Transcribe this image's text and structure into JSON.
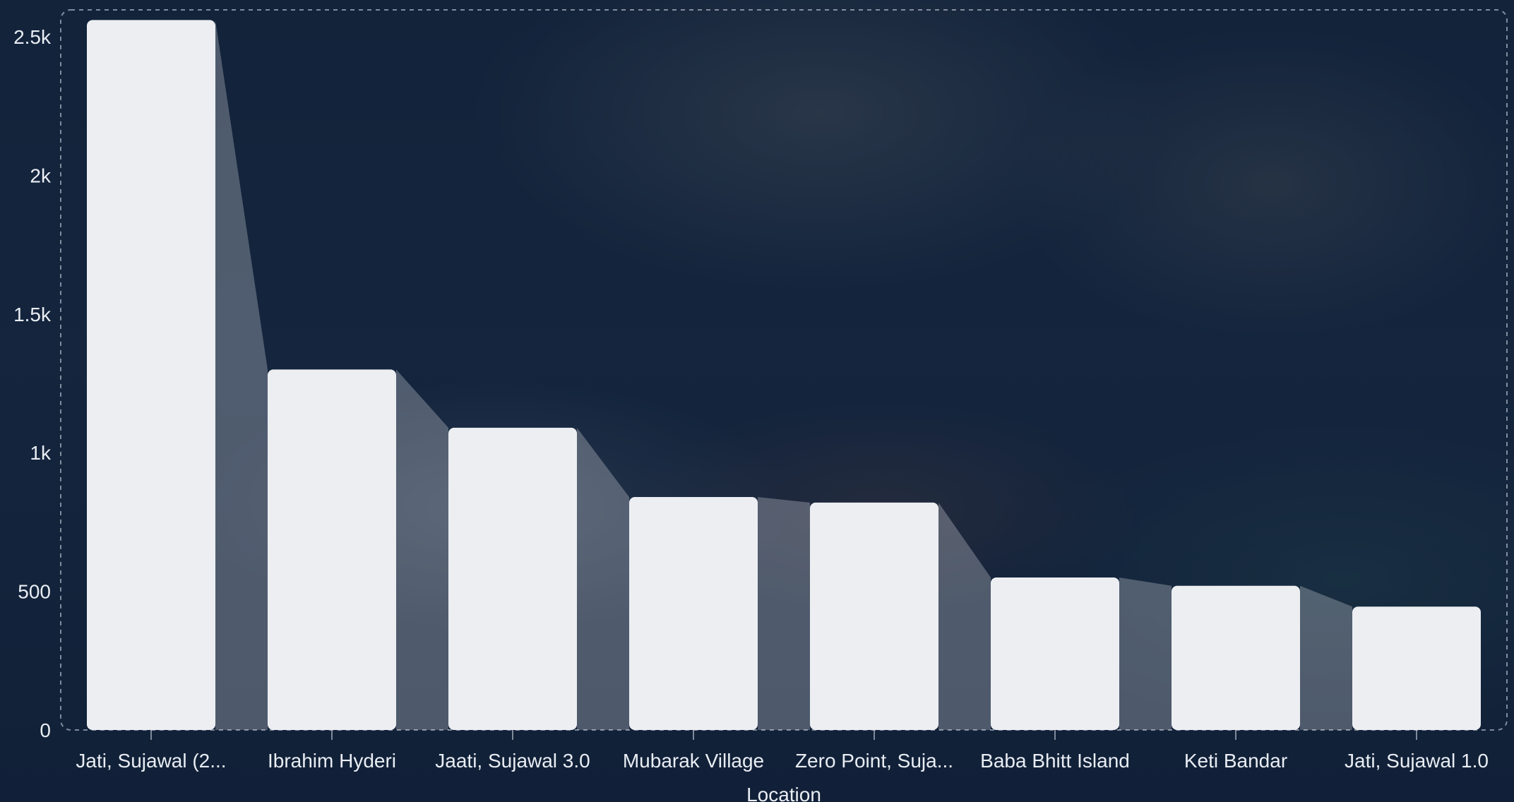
{
  "chart_data": {
    "type": "bar",
    "xlabel": "Location",
    "ylabel": "",
    "ylim": [
      0,
      2500
    ],
    "yticks": [
      0,
      500,
      1000,
      1500,
      2000,
      2500
    ],
    "ytick_labels": [
      "0",
      "500",
      "1k",
      "1.5k",
      "2k",
      "2.5k"
    ],
    "grid": "dashed plot border only",
    "categories": [
      "Jati, Sujawal (2...",
      "Ibrahim Hyderi",
      "Jaati, Sujawal 3.0",
      "Mubarak Village",
      "Zero Point, Suja...",
      "Baba Bhitt Island",
      "Keti Bandar",
      "Jati, Sujawal 1.0"
    ],
    "values": [
      2560,
      1300,
      1090,
      840,
      820,
      550,
      520,
      445
    ],
    "colors": {
      "bar": "#eceef2",
      "connector": "rgba(236,238,242,0.28)",
      "text": "#e9edf3",
      "border": "rgba(220,226,236,0.55)"
    }
  }
}
